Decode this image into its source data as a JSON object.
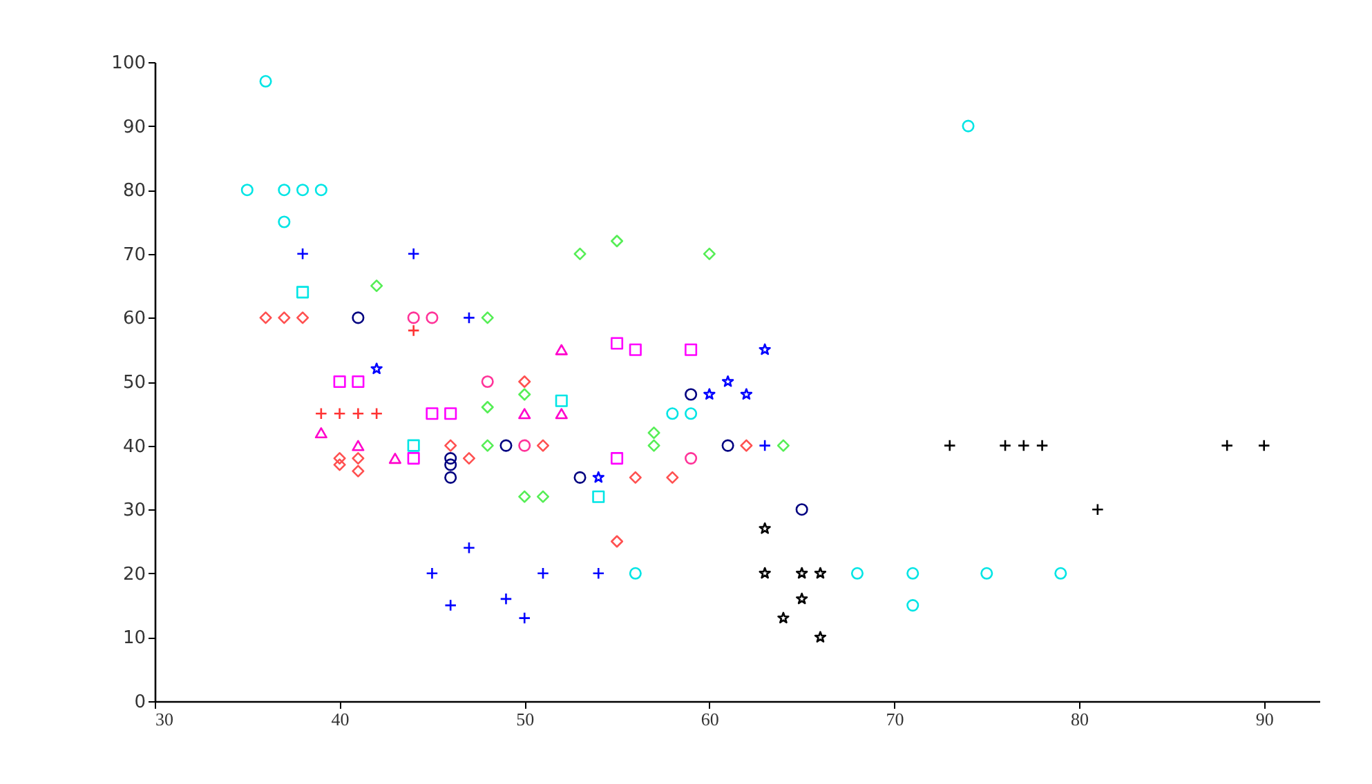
{
  "chart_data": {
    "type": "scatter",
    "xlim": [
      30,
      93
    ],
    "xticks": [
      30,
      40,
      50,
      60,
      70,
      80,
      90
    ],
    "ylim": [
      0,
      100
    ],
    "yticks": [
      0,
      10,
      20,
      30,
      40,
      50,
      60,
      70,
      80,
      90,
      100
    ],
    "grid": false,
    "series": [
      {
        "color": "#0000ff",
        "marker": "cross",
        "x": [
          38,
          44,
          47,
          63,
          45,
          46,
          47,
          49,
          50,
          51,
          54
        ],
        "values": [
          70,
          70,
          60,
          40,
          20,
          15,
          24,
          16,
          13,
          20,
          20
        ]
      },
      {
        "color": "#000000",
        "marker": "cross",
        "x": [
          73,
          76,
          77,
          78,
          81,
          88,
          90
        ],
        "values": [
          40,
          40,
          40,
          40,
          30,
          40,
          40
        ]
      },
      {
        "color": "#000000",
        "marker": "star",
        "x": [
          63,
          63,
          64,
          65,
          65,
          66,
          66
        ],
        "values": [
          27,
          20,
          13,
          20,
          16,
          20,
          10
        ]
      },
      {
        "color": "#0000ff",
        "marker": "star",
        "x": [
          42,
          54,
          60,
          61,
          62,
          63
        ],
        "values": [
          52,
          35,
          48,
          50,
          48,
          55
        ]
      },
      {
        "color": "#000080",
        "marker": "circle",
        "x": [
          41,
          46,
          46,
          46,
          49,
          53,
          59,
          61,
          65
        ],
        "values": [
          60,
          38,
          37,
          35,
          40,
          35,
          48,
          40,
          30
        ]
      },
      {
        "color": "#00e5e5",
        "marker": "circle",
        "x": [
          36,
          35,
          37,
          38,
          39,
          37,
          74,
          58,
          59,
          56,
          68,
          71,
          75,
          79,
          71
        ],
        "values": [
          97,
          80,
          80,
          80,
          80,
          75,
          90,
          45,
          45,
          20,
          20,
          20,
          20,
          20,
          15
        ]
      },
      {
        "color": "#00e5e5",
        "marker": "square",
        "x": [
          38,
          44,
          52,
          54
        ],
        "values": [
          64,
          40,
          47,
          32
        ]
      },
      {
        "color": "#55ee55",
        "marker": "diamond",
        "x": [
          42,
          48,
          48,
          50,
          53,
          55,
          57,
          57,
          60,
          50,
          51,
          64,
          48
        ],
        "values": [
          65,
          60,
          46,
          48,
          70,
          72,
          42,
          40,
          70,
          32,
          32,
          40,
          40
        ]
      },
      {
        "color": "#ff5050",
        "marker": "diamond",
        "x": [
          36,
          37,
          38,
          40,
          40,
          41,
          41,
          46,
          47,
          50,
          51,
          55,
          56,
          58,
          62
        ],
        "values": [
          60,
          60,
          60,
          38,
          37,
          36,
          38,
          40,
          38,
          50,
          40,
          25,
          35,
          35,
          40
        ]
      },
      {
        "color": "#ff00ff",
        "marker": "square",
        "x": [
          40,
          41,
          44,
          45,
          46,
          55,
          56,
          59,
          55
        ],
        "values": [
          50,
          50,
          38,
          45,
          45,
          56,
          55,
          55,
          38
        ]
      },
      {
        "color": "#ff00cc",
        "marker": "triangle",
        "x": [
          39,
          41,
          43,
          50,
          52,
          52
        ],
        "values": [
          42,
          40,
          38,
          45,
          45,
          55
        ]
      },
      {
        "color": "#ff3399",
        "marker": "circle",
        "x": [
          44,
          45,
          48,
          50,
          59
        ],
        "values": [
          60,
          60,
          50,
          40,
          38
        ]
      },
      {
        "color": "#ff3333",
        "marker": "cross",
        "x": [
          39,
          40,
          41,
          42,
          44
        ],
        "values": [
          45,
          45,
          45,
          45,
          58
        ]
      }
    ]
  }
}
